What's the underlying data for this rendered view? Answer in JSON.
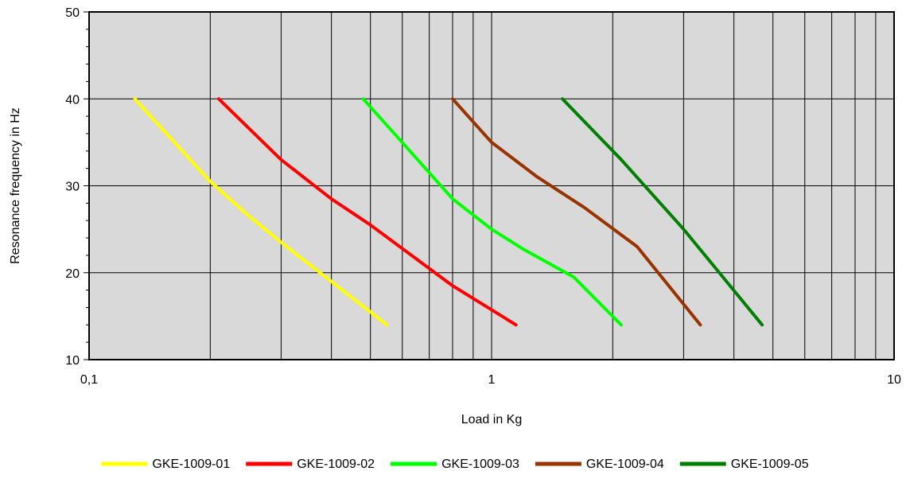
{
  "chart_data": {
    "type": "line",
    "title": "",
    "xlabel": "Load in Kg",
    "ylabel": "Resonance frequency in Hz",
    "x_scale": "log",
    "xlim": [
      0.1,
      10
    ],
    "ylim": [
      10,
      50
    ],
    "x_ticks": [
      {
        "value": 0.1,
        "label": "0,1"
      },
      {
        "value": 1,
        "label": "1"
      },
      {
        "value": 10,
        "label": "10"
      }
    ],
    "y_ticks": [
      {
        "value": 10,
        "label": "10"
      },
      {
        "value": 20,
        "label": "20"
      },
      {
        "value": 30,
        "label": "30"
      },
      {
        "value": 40,
        "label": "40"
      },
      {
        "value": 50,
        "label": "50"
      }
    ],
    "grid": true,
    "plot_background": "#d9d9d9",
    "legend_position": "bottom",
    "series": [
      {
        "name": "GKE-1009-01",
        "color": "#ffff00",
        "points": [
          [
            0.13,
            40
          ],
          [
            0.2,
            30.5
          ],
          [
            0.25,
            26.5
          ],
          [
            0.3,
            23.5
          ],
          [
            0.4,
            19
          ],
          [
            0.55,
            14
          ]
        ]
      },
      {
        "name": "GKE-1009-02",
        "color": "#ff0000",
        "points": [
          [
            0.21,
            40
          ],
          [
            0.3,
            33
          ],
          [
            0.4,
            28.5
          ],
          [
            0.5,
            25.5
          ],
          [
            0.8,
            18.5
          ],
          [
            1.15,
            14
          ]
        ]
      },
      {
        "name": "GKE-1009-03",
        "color": "#00ff00",
        "points": [
          [
            0.48,
            40
          ],
          [
            0.6,
            35
          ],
          [
            0.8,
            28.5
          ],
          [
            1,
            25
          ],
          [
            1.2,
            22.7
          ],
          [
            1.6,
            19.5
          ],
          [
            2.1,
            14
          ]
        ]
      },
      {
        "name": "GKE-1009-04",
        "color": "#993300",
        "points": [
          [
            0.8,
            40
          ],
          [
            1,
            35
          ],
          [
            1.3,
            31
          ],
          [
            1.7,
            27.5
          ],
          [
            2.3,
            23
          ],
          [
            3.3,
            14
          ]
        ]
      },
      {
        "name": "GKE-1009-05",
        "color": "#008000",
        "points": [
          [
            1.5,
            40
          ],
          [
            2.1,
            33
          ],
          [
            3,
            25
          ],
          [
            4.7,
            14
          ]
        ]
      }
    ]
  }
}
